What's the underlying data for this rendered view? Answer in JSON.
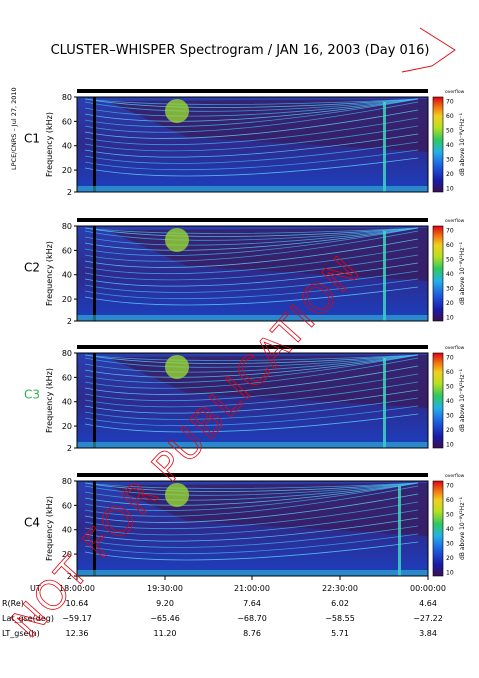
{
  "title": "CLUSTER–WHISPER Spectrogram / JAN 16, 2003 (Day 016)",
  "side_label": "LPCE/CNRS – Jul 27, 2010",
  "watermark": "NOT FOR PUBLICATION",
  "colorbar": {
    "ticks": [
      "70",
      "60",
      "50",
      "40",
      "30",
      "20",
      "10"
    ],
    "label": "dB above 10⁻⁸V²Hz⁻¹",
    "tag": "overflow"
  },
  "colors": {
    "background": "#3a1c5c",
    "c3_label": "#2db34a",
    "watermark": "#e8000b"
  },
  "chart_data": [
    {
      "type": "heatmap",
      "panel": "C1",
      "ylabel": "Frequency (kHz)",
      "yticks": [
        "80",
        "60",
        "40",
        "20",
        "2"
      ],
      "ylim": [
        2,
        80
      ],
      "xlim": [
        "18:00:00",
        "00:00:00"
      ]
    },
    {
      "type": "heatmap",
      "panel": "C2",
      "ylabel": "Frequency (kHz)",
      "yticks": [
        "80",
        "60",
        "40",
        "20",
        "2"
      ],
      "ylim": [
        2,
        80
      ],
      "xlim": [
        "18:00:00",
        "00:00:00"
      ]
    },
    {
      "type": "heatmap",
      "panel": "C3",
      "ylabel": "Frequency (kHz)",
      "yticks": [
        "80",
        "60",
        "40",
        "20",
        "2"
      ],
      "ylim": [
        2,
        80
      ],
      "xlim": [
        "18:00:00",
        "00:00:00"
      ]
    },
    {
      "type": "heatmap",
      "panel": "C4",
      "ylabel": "Frequency (kHz)",
      "yticks": [
        "80",
        "60",
        "40",
        "20",
        "2"
      ],
      "ylim": [
        2,
        80
      ],
      "xlim": [
        "18:00:00",
        "00:00:00"
      ]
    }
  ],
  "x_axis": {
    "rows": [
      {
        "label": "UT",
        "values": [
          "18:00:00",
          "19:30:00",
          "21:00:00",
          "22:30:00",
          "00:00:00"
        ]
      },
      {
        "label": "R(Re)",
        "values": [
          "10.64",
          "9.20",
          "7.64",
          "6.02",
          "4.64"
        ]
      },
      {
        "label": "Lat_gse(deg)",
        "values": [
          "−59.17",
          "−65.46",
          "−68.70",
          "−58.55",
          "−27.22"
        ]
      },
      {
        "label": "LT_gse(h)",
        "values": [
          "12.36",
          "11.20",
          "8.76",
          "5.71",
          "3.84"
        ]
      }
    ]
  }
}
